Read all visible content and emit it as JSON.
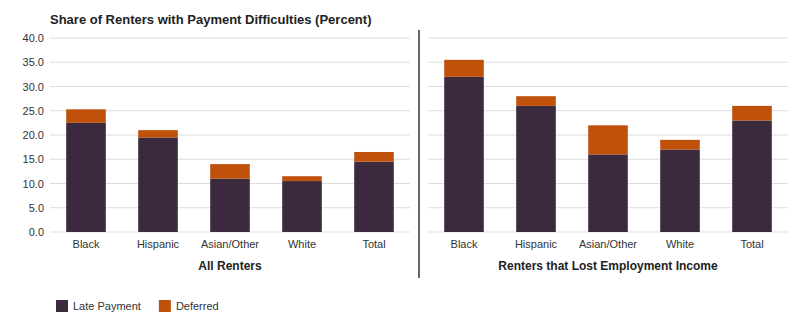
{
  "chart_data": [
    {
      "type": "bar",
      "stacked": true,
      "grid": true,
      "legend": "bottom",
      "title": "Share of Renters with Payment Difficulties (Percent)",
      "xlabel": "All Renters",
      "categories": [
        "Black",
        "Hispanic",
        "Asian/Other",
        "White",
        "Total"
      ],
      "series": [
        {
          "name": "Late Payment",
          "color": "#3b2a3e",
          "values": [
            22.5,
            19.5,
            11.0,
            10.5,
            14.5
          ]
        },
        {
          "name": "Deferred",
          "color": "#c0510a",
          "values": [
            2.8,
            1.5,
            3.0,
            1.0,
            2.0
          ]
        }
      ],
      "ylim": [
        0,
        40
      ],
      "yticks": [
        {
          "value": 0,
          "label": "0.0"
        },
        {
          "value": 5,
          "label": "5.0"
        },
        {
          "value": 10,
          "label": "10.0"
        },
        {
          "value": 15,
          "label": "15.0"
        },
        {
          "value": 20,
          "label": "20.0"
        },
        {
          "value": 25,
          "label": "25.0"
        },
        {
          "value": 30,
          "label": "30.0"
        },
        {
          "value": 35,
          "label": "35.0"
        },
        {
          "value": 40,
          "label": "40.0"
        }
      ]
    },
    {
      "type": "bar",
      "stacked": true,
      "grid": true,
      "tick_labels": "x",
      "xlabel": "Renters that Lost Employment Income",
      "categories": [
        "Black",
        "Hispanic",
        "Asian/Other",
        "White",
        "Total"
      ],
      "series": [
        {
          "name": "Late Payment",
          "color": "#3b2a3e",
          "values": [
            32.0,
            26.0,
            16.0,
            17.0,
            23.0
          ]
        },
        {
          "name": "Deferred",
          "color": "#c0510a",
          "values": [
            3.5,
            2.0,
            6.0,
            2.0,
            3.0
          ]
        }
      ],
      "ylim": [
        0,
        40
      ],
      "yticks": [
        0,
        5,
        10,
        15,
        20,
        25,
        30,
        35,
        40
      ]
    }
  ]
}
